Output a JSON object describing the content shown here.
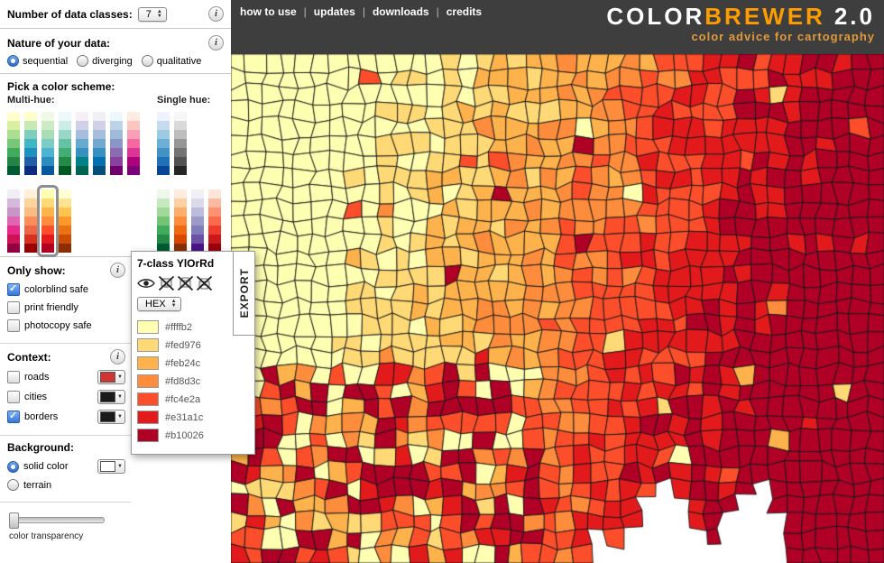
{
  "header": {
    "nav": [
      {
        "label": "how to use"
      },
      {
        "label": "updates"
      },
      {
        "label": "downloads"
      },
      {
        "label": "credits"
      }
    ],
    "logo": {
      "color_part": "COLOR",
      "brewer_part": "BREWER",
      "version": "2.0",
      "tagline": "color advice for cartography"
    },
    "colors": {
      "bg": "#3e3e3e",
      "accent": "#ff9d00",
      "tagline": "#e09a3c"
    }
  },
  "controls": {
    "data_classes": {
      "label": "Number of data classes:",
      "value": "7"
    },
    "nature": {
      "label": "Nature of your data:",
      "options": [
        {
          "label": "sequential",
          "selected": true
        },
        {
          "label": "diverging",
          "selected": false
        },
        {
          "label": "qualitative",
          "selected": false
        }
      ]
    },
    "scheme_picker": {
      "label": "Pick a color scheme:",
      "multi_hue_label": "Multi-hue:",
      "single_hue_label": "Single hue:"
    },
    "only_show": {
      "label": "Only show:",
      "options": [
        {
          "label": "colorblind safe",
          "checked": true
        },
        {
          "label": "print friendly",
          "checked": false
        },
        {
          "label": "photocopy safe",
          "checked": false
        }
      ]
    },
    "context": {
      "label": "Context:",
      "options": [
        {
          "label": "roads",
          "checked": false,
          "swatch": "#d23333"
        },
        {
          "label": "cities",
          "checked": false,
          "swatch": "#1a1a1a"
        },
        {
          "label": "borders",
          "checked": true,
          "swatch": "#1a1a1a"
        }
      ]
    },
    "background": {
      "label": "Background:",
      "options": [
        {
          "label": "solid color",
          "selected": true,
          "swatch": "#ffffff"
        },
        {
          "label": "terrain",
          "selected": false
        }
      ]
    },
    "transparency": {
      "label": "color transparency",
      "value": 0
    }
  },
  "schemes": {
    "selected": "YlOrRd",
    "multi_hue_row1": [
      {
        "name": "YlGn",
        "colors": [
          "#ffffcc",
          "#d9f0a3",
          "#addd8e",
          "#78c679",
          "#41ab5d",
          "#238443",
          "#005a32"
        ]
      },
      {
        "name": "YlGnBu",
        "colors": [
          "#ffffcc",
          "#c7e9b4",
          "#7fcdbb",
          "#41b6c4",
          "#1d91c0",
          "#225ea8",
          "#0c2c84"
        ]
      },
      {
        "name": "GnBu",
        "colors": [
          "#f0f9e8",
          "#ccebc5",
          "#a8ddb5",
          "#7bccc4",
          "#4eb3d3",
          "#2b8cbe",
          "#08589e"
        ]
      },
      {
        "name": "BuGn",
        "colors": [
          "#edf8fb",
          "#ccece6",
          "#99d8c9",
          "#66c2a4",
          "#41ae76",
          "#238b45",
          "#005824"
        ]
      },
      {
        "name": "PuBuGn",
        "colors": [
          "#f6eff7",
          "#d0d1e6",
          "#a6bddb",
          "#67a9cf",
          "#3690c0",
          "#02818a",
          "#016450"
        ]
      },
      {
        "name": "PuBu",
        "colors": [
          "#f1eef6",
          "#d0d1e6",
          "#a6bddb",
          "#74a9cf",
          "#3690c0",
          "#0570b0",
          "#034e7b"
        ]
      },
      {
        "name": "BuPu",
        "colors": [
          "#edf8fb",
          "#bfd3e6",
          "#9ebcda",
          "#8c96c6",
          "#8c6bb1",
          "#88419d",
          "#6e016b"
        ]
      },
      {
        "name": "RdPu",
        "colors": [
          "#feebe2",
          "#fcc5c0",
          "#fa9fb5",
          "#f768a1",
          "#dd3497",
          "#ae017e",
          "#7a0177"
        ]
      }
    ],
    "multi_hue_row2": [
      {
        "name": "PuRd",
        "colors": [
          "#f1eef6",
          "#d4b9da",
          "#c994c7",
          "#df65b0",
          "#e7298a",
          "#ce1256",
          "#91003f"
        ]
      },
      {
        "name": "OrRd",
        "colors": [
          "#fef0d9",
          "#fdd49e",
          "#fdbb84",
          "#fc8d59",
          "#ef6548",
          "#d7301f",
          "#990000"
        ]
      },
      {
        "name": "YlOrRd",
        "colors": [
          "#ffffb2",
          "#fed976",
          "#feb24c",
          "#fd8d3c",
          "#fc4e2a",
          "#e31a1c",
          "#b10026"
        ]
      },
      {
        "name": "YlOrBr",
        "colors": [
          "#ffffd4",
          "#fee391",
          "#fec44f",
          "#fe9929",
          "#ec7014",
          "#cc4c02",
          "#8c2d04"
        ]
      }
    ],
    "single_hue_row1": [
      {
        "name": "Blues",
        "colors": [
          "#eff3ff",
          "#c6dbef",
          "#9ecae1",
          "#6baed6",
          "#4292c6",
          "#2171b5",
          "#084594"
        ]
      },
      {
        "name": "Greys",
        "colors": [
          "#f7f7f7",
          "#d9d9d9",
          "#bdbdbd",
          "#969696",
          "#737373",
          "#525252",
          "#252525"
        ]
      }
    ],
    "single_hue_row2": [
      {
        "name": "Greens",
        "colors": [
          "#edf8e9",
          "#c7e9c0",
          "#a1d99b",
          "#74c476",
          "#41ab5d",
          "#238b45",
          "#005a32"
        ]
      },
      {
        "name": "Oranges",
        "colors": [
          "#feedde",
          "#fdd0a2",
          "#fdae6b",
          "#fd8d3c",
          "#f16913",
          "#d94801",
          "#8c2d04"
        ]
      },
      {
        "name": "Purples",
        "colors": [
          "#f2f0f7",
          "#dadaeb",
          "#bcbddc",
          "#9e9ac8",
          "#807dba",
          "#6a51a3",
          "#4a1486"
        ]
      },
      {
        "name": "Reds",
        "colors": [
          "#fee5d9",
          "#fcbba1",
          "#fc9272",
          "#fb6a4a",
          "#ef3b2c",
          "#cb181d",
          "#99000d"
        ]
      }
    ]
  },
  "panel": {
    "title": "7-class YlOrRd",
    "format_value": "HEX",
    "export_label": "EXPORT",
    "icons": [
      {
        "name": "colorblind-safe-eye",
        "crossed": false
      },
      {
        "name": "lcd-unfriendly",
        "crossed": true
      },
      {
        "name": "photocopy-unsafe",
        "crossed": true
      },
      {
        "name": "print-unfriendly",
        "crossed": true
      }
    ],
    "colors": [
      "#ffffb2",
      "#fed976",
      "#feb24c",
      "#fd8d3c",
      "#fc4e2a",
      "#e31a1c",
      "#b10026"
    ]
  },
  "map": {
    "seed": 987654321,
    "cols": 40,
    "rows": 31
  }
}
